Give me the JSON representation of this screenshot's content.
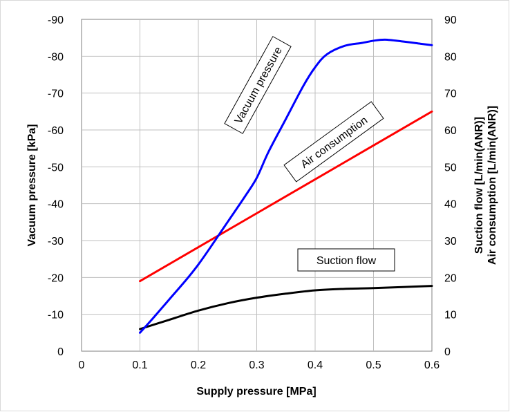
{
  "chart_data": {
    "type": "line",
    "xlabel": "Supply pressure [MPa]",
    "ylabel_left": "Vacuum pressure [kPa]",
    "ylabel_right_line1": "Suction flow  [L/min(ANR)]",
    "ylabel_right_line2": "Air consumption [L/min(ANR)]",
    "xlim": [
      0,
      0.6
    ],
    "ylim_left": [
      0,
      -90
    ],
    "ylim_right": [
      0,
      90
    ],
    "x_ticks": [
      "0",
      "0.1",
      "0.2",
      "0.3",
      "0.4",
      "0.5",
      "0.6"
    ],
    "y_left_ticks": [
      "0",
      "-10",
      "-20",
      "-30",
      "-40",
      "-50",
      "-60",
      "-70",
      "-80",
      "-90"
    ],
    "y_right_ticks": [
      "0",
      "10",
      "20",
      "30",
      "40",
      "50",
      "60",
      "70",
      "80",
      "90"
    ],
    "grid": true,
    "series": [
      {
        "name": "Vacuum pressure",
        "axis": "left",
        "color": "#0000ff",
        "x": [
          0.1,
          0.12,
          0.15,
          0.18,
          0.2,
          0.22,
          0.25,
          0.28,
          0.3,
          0.32,
          0.35,
          0.38,
          0.4,
          0.42,
          0.45,
          0.48,
          0.5,
          0.52,
          0.55,
          0.58,
          0.6
        ],
        "values": [
          -5,
          -8.5,
          -14,
          -19.5,
          -23.5,
          -28,
          -35,
          -42,
          -47,
          -54,
          -63,
          -72,
          -77,
          -80.5,
          -82.8,
          -83.6,
          -84.2,
          -84.5,
          -84,
          -83.4,
          -83
        ]
      },
      {
        "name": "Air consumption",
        "axis": "right",
        "color": "#ff0000",
        "x": [
          0.1,
          0.6
        ],
        "values": [
          19,
          65
        ]
      },
      {
        "name": "Suction flow",
        "axis": "right",
        "color": "#000000",
        "x": [
          0.1,
          0.15,
          0.2,
          0.25,
          0.3,
          0.35,
          0.4,
          0.45,
          0.5,
          0.55,
          0.6
        ],
        "values": [
          6,
          8.5,
          11,
          13,
          14.5,
          15.6,
          16.5,
          16.9,
          17.1,
          17.4,
          17.7
        ]
      }
    ],
    "annotations": [
      {
        "text": "Vacuum pressure",
        "series": "Vacuum pressure"
      },
      {
        "text": "Air consumption",
        "series": "Air consumption"
      },
      {
        "text": "Suction flow",
        "series": "Suction flow"
      }
    ]
  }
}
